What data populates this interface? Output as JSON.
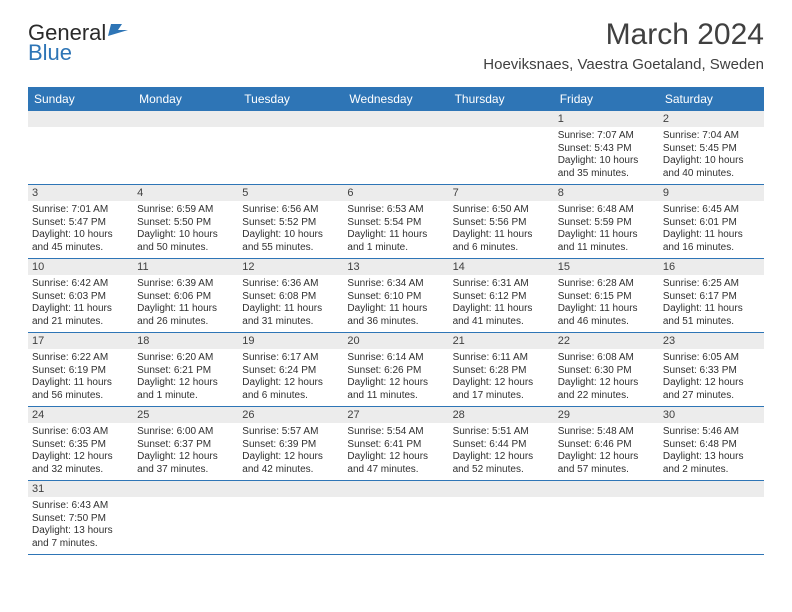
{
  "logo": {
    "text1": "General",
    "text2": "Blue"
  },
  "title": "March 2024",
  "location": "Hoeviksnaes, Vaestra Goetaland, Sweden",
  "colors": {
    "header_bg": "#2e75b6",
    "header_text": "#ffffff",
    "daynum_bg": "#ececec",
    "border": "#2e75b6",
    "text": "#303030",
    "title_text": "#404040"
  },
  "dayNames": [
    "Sunday",
    "Monday",
    "Tuesday",
    "Wednesday",
    "Thursday",
    "Friday",
    "Saturday"
  ],
  "weeks": [
    [
      null,
      null,
      null,
      null,
      null,
      {
        "n": "1",
        "sr": "Sunrise: 7:07 AM",
        "ss": "Sunset: 5:43 PM",
        "dl": "Daylight: 10 hours and 35 minutes."
      },
      {
        "n": "2",
        "sr": "Sunrise: 7:04 AM",
        "ss": "Sunset: 5:45 PM",
        "dl": "Daylight: 10 hours and 40 minutes."
      }
    ],
    [
      {
        "n": "3",
        "sr": "Sunrise: 7:01 AM",
        "ss": "Sunset: 5:47 PM",
        "dl": "Daylight: 10 hours and 45 minutes."
      },
      {
        "n": "4",
        "sr": "Sunrise: 6:59 AM",
        "ss": "Sunset: 5:50 PM",
        "dl": "Daylight: 10 hours and 50 minutes."
      },
      {
        "n": "5",
        "sr": "Sunrise: 6:56 AM",
        "ss": "Sunset: 5:52 PM",
        "dl": "Daylight: 10 hours and 55 minutes."
      },
      {
        "n": "6",
        "sr": "Sunrise: 6:53 AM",
        "ss": "Sunset: 5:54 PM",
        "dl": "Daylight: 11 hours and 1 minute."
      },
      {
        "n": "7",
        "sr": "Sunrise: 6:50 AM",
        "ss": "Sunset: 5:56 PM",
        "dl": "Daylight: 11 hours and 6 minutes."
      },
      {
        "n": "8",
        "sr": "Sunrise: 6:48 AM",
        "ss": "Sunset: 5:59 PM",
        "dl": "Daylight: 11 hours and 11 minutes."
      },
      {
        "n": "9",
        "sr": "Sunrise: 6:45 AM",
        "ss": "Sunset: 6:01 PM",
        "dl": "Daylight: 11 hours and 16 minutes."
      }
    ],
    [
      {
        "n": "10",
        "sr": "Sunrise: 6:42 AM",
        "ss": "Sunset: 6:03 PM",
        "dl": "Daylight: 11 hours and 21 minutes."
      },
      {
        "n": "11",
        "sr": "Sunrise: 6:39 AM",
        "ss": "Sunset: 6:06 PM",
        "dl": "Daylight: 11 hours and 26 minutes."
      },
      {
        "n": "12",
        "sr": "Sunrise: 6:36 AM",
        "ss": "Sunset: 6:08 PM",
        "dl": "Daylight: 11 hours and 31 minutes."
      },
      {
        "n": "13",
        "sr": "Sunrise: 6:34 AM",
        "ss": "Sunset: 6:10 PM",
        "dl": "Daylight: 11 hours and 36 minutes."
      },
      {
        "n": "14",
        "sr": "Sunrise: 6:31 AM",
        "ss": "Sunset: 6:12 PM",
        "dl": "Daylight: 11 hours and 41 minutes."
      },
      {
        "n": "15",
        "sr": "Sunrise: 6:28 AM",
        "ss": "Sunset: 6:15 PM",
        "dl": "Daylight: 11 hours and 46 minutes."
      },
      {
        "n": "16",
        "sr": "Sunrise: 6:25 AM",
        "ss": "Sunset: 6:17 PM",
        "dl": "Daylight: 11 hours and 51 minutes."
      }
    ],
    [
      {
        "n": "17",
        "sr": "Sunrise: 6:22 AM",
        "ss": "Sunset: 6:19 PM",
        "dl": "Daylight: 11 hours and 56 minutes."
      },
      {
        "n": "18",
        "sr": "Sunrise: 6:20 AM",
        "ss": "Sunset: 6:21 PM",
        "dl": "Daylight: 12 hours and 1 minute."
      },
      {
        "n": "19",
        "sr": "Sunrise: 6:17 AM",
        "ss": "Sunset: 6:24 PM",
        "dl": "Daylight: 12 hours and 6 minutes."
      },
      {
        "n": "20",
        "sr": "Sunrise: 6:14 AM",
        "ss": "Sunset: 6:26 PM",
        "dl": "Daylight: 12 hours and 11 minutes."
      },
      {
        "n": "21",
        "sr": "Sunrise: 6:11 AM",
        "ss": "Sunset: 6:28 PM",
        "dl": "Daylight: 12 hours and 17 minutes."
      },
      {
        "n": "22",
        "sr": "Sunrise: 6:08 AM",
        "ss": "Sunset: 6:30 PM",
        "dl": "Daylight: 12 hours and 22 minutes."
      },
      {
        "n": "23",
        "sr": "Sunrise: 6:05 AM",
        "ss": "Sunset: 6:33 PM",
        "dl": "Daylight: 12 hours and 27 minutes."
      }
    ],
    [
      {
        "n": "24",
        "sr": "Sunrise: 6:03 AM",
        "ss": "Sunset: 6:35 PM",
        "dl": "Daylight: 12 hours and 32 minutes."
      },
      {
        "n": "25",
        "sr": "Sunrise: 6:00 AM",
        "ss": "Sunset: 6:37 PM",
        "dl": "Daylight: 12 hours and 37 minutes."
      },
      {
        "n": "26",
        "sr": "Sunrise: 5:57 AM",
        "ss": "Sunset: 6:39 PM",
        "dl": "Daylight: 12 hours and 42 minutes."
      },
      {
        "n": "27",
        "sr": "Sunrise: 5:54 AM",
        "ss": "Sunset: 6:41 PM",
        "dl": "Daylight: 12 hours and 47 minutes."
      },
      {
        "n": "28",
        "sr": "Sunrise: 5:51 AM",
        "ss": "Sunset: 6:44 PM",
        "dl": "Daylight: 12 hours and 52 minutes."
      },
      {
        "n": "29",
        "sr": "Sunrise: 5:48 AM",
        "ss": "Sunset: 6:46 PM",
        "dl": "Daylight: 12 hours and 57 minutes."
      },
      {
        "n": "30",
        "sr": "Sunrise: 5:46 AM",
        "ss": "Sunset: 6:48 PM",
        "dl": "Daylight: 13 hours and 2 minutes."
      }
    ],
    [
      {
        "n": "31",
        "sr": "Sunrise: 6:43 AM",
        "ss": "Sunset: 7:50 PM",
        "dl": "Daylight: 13 hours and 7 minutes."
      },
      null,
      null,
      null,
      null,
      null,
      null
    ]
  ]
}
